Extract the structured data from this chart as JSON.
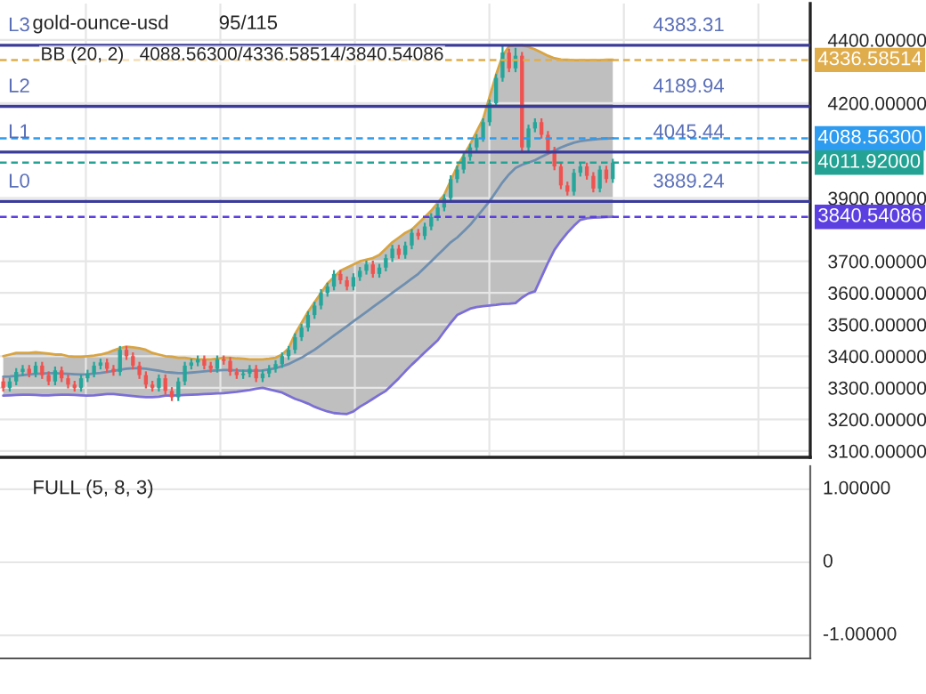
{
  "chart_data": [
    {
      "type": "candlestick",
      "title": "gold-ounce-usd",
      "subtitle": "95/115",
      "annotations": [
        "BB (20, 2)   4088.56300/4336.58514/3840.54086",
        {
          "text": "4383.31",
          "y": 4383.31
        },
        {
          "text": "4189.94",
          "y": 4189.94
        },
        {
          "text": "4045.44",
          "y": 4045.44
        },
        {
          "text": "3889.24",
          "y": 3889.24
        }
      ],
      "categories": [
        null,
        null,
        null,
        null,
        null,
        null,
        null,
        null,
        null,
        null,
        null,
        null,
        null,
        null,
        null,
        null,
        null,
        null,
        null,
        null,
        null,
        null,
        null,
        null,
        null,
        null,
        null,
        null,
        null,
        null,
        null,
        null,
        null,
        null,
        null,
        null,
        null,
        null,
        null,
        null,
        null,
        null,
        null,
        null,
        null,
        null,
        null,
        null,
        null,
        null,
        null,
        null,
        null,
        null,
        null,
        null,
        null,
        null,
        null,
        null,
        null,
        null,
        null,
        null,
        null,
        null,
        null,
        null,
        null,
        null,
        null,
        null,
        null,
        null,
        null,
        null,
        null,
        null,
        null,
        null,
        null,
        null,
        null,
        null,
        null,
        null,
        null,
        null,
        null,
        null,
        null,
        null,
        null,
        null,
        null
      ],
      "ohlc": [
        [
          3320,
          3332,
          3288,
          3300
        ],
        [
          3300,
          3332,
          3288,
          3320
        ],
        [
          3320,
          3362,
          3308,
          3350
        ],
        [
          3350,
          3372,
          3338,
          3360
        ],
        [
          3360,
          3372,
          3333,
          3345
        ],
        [
          3345,
          3382,
          3333,
          3370
        ],
        [
          3370,
          3382,
          3328,
          3340
        ],
        [
          3340,
          3352,
          3308,
          3320
        ],
        [
          3320,
          3367,
          3308,
          3355
        ],
        [
          3355,
          3367,
          3318,
          3330
        ],
        [
          3330,
          3342,
          3298,
          3310
        ],
        [
          3310,
          3322,
          3288,
          3300
        ],
        [
          3300,
          3342,
          3288,
          3330
        ],
        [
          3330,
          3357,
          3318,
          3345
        ],
        [
          3345,
          3382,
          3333,
          3370
        ],
        [
          3370,
          3392,
          3358,
          3380
        ],
        [
          3380,
          3392,
          3348,
          3360
        ],
        [
          3360,
          3372,
          3338,
          3350
        ],
        [
          3350,
          3432,
          3338,
          3420
        ],
        [
          3420,
          3432,
          3388,
          3400
        ],
        [
          3400,
          3412,
          3358,
          3370
        ],
        [
          3370,
          3382,
          3328,
          3340
        ],
        [
          3340,
          3352,
          3298,
          3310
        ],
        [
          3310,
          3322,
          3288,
          3300
        ],
        [
          3300,
          3342,
          3288,
          3330
        ],
        [
          3330,
          3342,
          3278,
          3290
        ],
        [
          3290,
          3302,
          3258,
          3270
        ],
        [
          3270,
          3332,
          3258,
          3320
        ],
        [
          3320,
          3382,
          3308,
          3370
        ],
        [
          3370,
          3392,
          3358,
          3380
        ],
        [
          3380,
          3402,
          3368,
          3390
        ],
        [
          3390,
          3402,
          3358,
          3370
        ],
        [
          3370,
          3382,
          3348,
          3360
        ],
        [
          3360,
          3402,
          3348,
          3390
        ],
        [
          3390,
          3402,
          3373,
          3385
        ],
        [
          3385,
          3397,
          3338,
          3350
        ],
        [
          3350,
          3362,
          3328,
          3340
        ],
        [
          3340,
          3357,
          3328,
          3345
        ],
        [
          3345,
          3372,
          3333,
          3360
        ],
        [
          3360,
          3372,
          3318,
          3330
        ],
        [
          3330,
          3357,
          3318,
          3345
        ],
        [
          3345,
          3372,
          3333,
          3360
        ],
        [
          3360,
          3387,
          3348,
          3375
        ],
        [
          3375,
          3412,
          3363,
          3400
        ],
        [
          3400,
          3432,
          3388,
          3420
        ],
        [
          3420,
          3472,
          3408,
          3460
        ],
        [
          3460,
          3502,
          3448,
          3490
        ],
        [
          3490,
          3542,
          3478,
          3530
        ],
        [
          3530,
          3572,
          3518,
          3560
        ],
        [
          3560,
          3612,
          3548,
          3600
        ],
        [
          3600,
          3632,
          3588,
          3620
        ],
        [
          3620,
          3672,
          3608,
          3660
        ],
        [
          3660,
          3672,
          3628,
          3640
        ],
        [
          3640,
          3652,
          3608,
          3620
        ],
        [
          3620,
          3662,
          3608,
          3650
        ],
        [
          3650,
          3682,
          3638,
          3670
        ],
        [
          3670,
          3702,
          3658,
          3690
        ],
        [
          3690,
          3702,
          3648,
          3660
        ],
        [
          3660,
          3692,
          3648,
          3680
        ],
        [
          3680,
          3722,
          3668,
          3710
        ],
        [
          3710,
          3752,
          3698,
          3740
        ],
        [
          3740,
          3752,
          3708,
          3720
        ],
        [
          3720,
          3762,
          3708,
          3750
        ],
        [
          3750,
          3802,
          3738,
          3790
        ],
        [
          3790,
          3802,
          3768,
          3780
        ],
        [
          3780,
          3822,
          3768,
          3810
        ],
        [
          3810,
          3852,
          3798,
          3840
        ],
        [
          3840,
          3882,
          3828,
          3870
        ],
        [
          3870,
          3912,
          3858,
          3900
        ],
        [
          3900,
          3972,
          3888,
          3960
        ],
        [
          3960,
          4002,
          3948,
          3990
        ],
        [
          3990,
          4042,
          3978,
          4030
        ],
        [
          4030,
          4072,
          4018,
          4060
        ],
        [
          4060,
          4102,
          4048,
          4090
        ],
        [
          4090,
          4152,
          4078,
          4140
        ],
        [
          4140,
          4212,
          4128,
          4200
        ],
        [
          4200,
          4292,
          4188,
          4280
        ],
        [
          4280,
          4380,
          4268,
          4360
        ],
        [
          4360,
          4372,
          4298,
          4310
        ],
        [
          4310,
          4375,
          4298,
          4350
        ],
        [
          4350,
          4362,
          4048,
          4060
        ],
        [
          4060,
          4132,
          4048,
          4120
        ],
        [
          4120,
          4152,
          4108,
          4140
        ],
        [
          4140,
          4152,
          4088,
          4100
        ],
        [
          4100,
          4112,
          4038,
          4050
        ],
        [
          4050,
          4062,
          3988,
          4000
        ],
        [
          4000,
          4012,
          3928,
          3940
        ],
        [
          3940,
          3952,
          3908,
          3920
        ],
        [
          3920,
          3992,
          3908,
          3980
        ],
        [
          3980,
          4012,
          3968,
          4000
        ],
        [
          4000,
          4012,
          3958,
          3970
        ],
        [
          3970,
          3982,
          3918,
          3930
        ],
        [
          3930,
          4002,
          3918,
          3990
        ],
        [
          3990,
          4002,
          3948,
          3960
        ],
        [
          3960,
          4024,
          3948,
          4011.92
        ]
      ],
      "series": [
        {
          "type": "line",
          "color": "#d9a441",
          "values": [
            3400,
            3405,
            3410,
            3410,
            3410,
            3412,
            3410,
            3408,
            3405,
            3405,
            3400,
            3398,
            3398,
            3400,
            3402,
            3405,
            3410,
            3418,
            3425,
            3430,
            3428,
            3425,
            3420,
            3410,
            3405,
            3400,
            3398,
            3395,
            3395,
            3392,
            3390,
            3390,
            3390,
            3392,
            3395,
            3395,
            3393,
            3392,
            3390,
            3390,
            3390,
            3392,
            3395,
            3405,
            3425,
            3470,
            3505,
            3540,
            3570,
            3600,
            3630,
            3650,
            3670,
            3680,
            3690,
            3700,
            3705,
            3710,
            3720,
            3740,
            3760,
            3775,
            3790,
            3800,
            3820,
            3840,
            3860,
            3885,
            3910,
            3955,
            4000,
            4035,
            4070,
            4110,
            4150,
            4220,
            4290,
            4350,
            4380,
            4383,
            4383,
            4378,
            4370,
            4360,
            4350,
            4342,
            4338,
            4337,
            4336,
            4336,
            4336,
            4336,
            4336,
            4337,
            4337
          ]
        },
        {
          "type": "line",
          "color": "#6f8fb0",
          "upper": [
            3400,
            3405,
            3410,
            3410,
            3410,
            3412,
            3410,
            3408,
            3405,
            3405,
            3400,
            3398,
            3398,
            3400,
            3402,
            3405,
            3410,
            3418,
            3425,
            3430,
            3428,
            3425,
            3420,
            3410,
            3405,
            3400,
            3398,
            3395,
            3395,
            3392,
            3390,
            3390,
            3390,
            3392,
            3395,
            3395,
            3393,
            3392,
            3390,
            3390,
            3390,
            3392,
            3395,
            3405,
            3425,
            3470,
            3505,
            3540,
            3570,
            3600,
            3630,
            3650,
            3670,
            3680,
            3690,
            3700,
            3705,
            3710,
            3720,
            3740,
            3760,
            3775,
            3790,
            3800,
            3820,
            3840,
            3860,
            3885,
            3910,
            3955,
            4000,
            4035,
            4070,
            4110,
            4150,
            4220,
            4290,
            4350,
            4380,
            4383,
            4383,
            4378,
            4370,
            4360,
            4350,
            4342,
            4338,
            4337,
            4336,
            4336,
            4336,
            4336,
            4336,
            4337,
            4337
          ],
          "lower": [
            3275,
            3276,
            3277,
            3278,
            3278,
            3277,
            3276,
            3276,
            3277,
            3278,
            3278,
            3277,
            3276,
            3275,
            3276,
            3278,
            3280,
            3280,
            3278,
            3276,
            3274,
            3272,
            3270,
            3270,
            3272,
            3275,
            3275,
            3276,
            3277,
            3278,
            3279,
            3280,
            3281,
            3282,
            3283,
            3285,
            3287,
            3290,
            3293,
            3297,
            3300,
            3295,
            3290,
            3285,
            3275,
            3265,
            3258,
            3250,
            3240,
            3232,
            3225,
            3220,
            3218,
            3217,
            3225,
            3240,
            3252,
            3265,
            3278,
            3290,
            3310,
            3330,
            3352,
            3373,
            3392,
            3412,
            3431,
            3450,
            3478,
            3505,
            3530,
            3540,
            3550,
            3555,
            3558,
            3560,
            3562,
            3565,
            3566,
            3568,
            3585,
            3598,
            3605,
            3650,
            3695,
            3736,
            3765,
            3790,
            3812,
            3831,
            3836,
            3838,
            3839,
            3840,
            3841
          ],
          "values": [
            3335,
            3336,
            3338,
            3340,
            3342,
            3344,
            3345,
            3346,
            3346,
            3345,
            3344,
            3343,
            3342,
            3343,
            3345,
            3347,
            3350,
            3353,
            3357,
            3360,
            3362,
            3362,
            3360,
            3357,
            3354,
            3350,
            3348,
            3346,
            3346,
            3348,
            3350,
            3352,
            3354,
            3355,
            3356,
            3356,
            3355,
            3354,
            3354,
            3354,
            3355,
            3358,
            3362,
            3368,
            3375,
            3385,
            3395,
            3408,
            3420,
            3435,
            3450,
            3465,
            3480,
            3495,
            3510,
            3525,
            3540,
            3555,
            3570,
            3585,
            3600,
            3615,
            3630,
            3645,
            3660,
            3680,
            3700,
            3720,
            3740,
            3760,
            3775,
            3795,
            3815,
            3840,
            3865,
            3890,
            3920,
            3950,
            3975,
            3995,
            4005,
            4012,
            4020,
            4030,
            4040,
            4050,
            4060,
            4068,
            4075,
            4080,
            4083,
            4085,
            4087,
            4088,
            4089
          ]
        },
        {
          "type": "line",
          "color": "#7b6fd6",
          "values": [
            3275,
            3276,
            3277,
            3278,
            3278,
            3277,
            3276,
            3276,
            3277,
            3278,
            3278,
            3277,
            3276,
            3275,
            3276,
            3278,
            3280,
            3280,
            3278,
            3276,
            3274,
            3272,
            3270,
            3270,
            3272,
            3275,
            3275,
            3276,
            3277,
            3278,
            3279,
            3280,
            3281,
            3282,
            3283,
            3285,
            3287,
            3290,
            3293,
            3297,
            3300,
            3295,
            3290,
            3285,
            3275,
            3265,
            3258,
            3250,
            3240,
            3232,
            3225,
            3220,
            3218,
            3217,
            3225,
            3240,
            3252,
            3265,
            3278,
            3290,
            3310,
            3330,
            3352,
            3373,
            3392,
            3412,
            3431,
            3450,
            3478,
            3505,
            3530,
            3540,
            3550,
            3555,
            3558,
            3560,
            3562,
            3565,
            3566,
            3568,
            3585,
            3598,
            3605,
            3650,
            3695,
            3736,
            3765,
            3790,
            3812,
            3831,
            3836,
            3838,
            3839,
            3840,
            3841
          ]
        }
      ],
      "ylim": [
        3080,
        4515
      ],
      "yticks": [
        {
          "value": 3100,
          "label": "3100.00000"
        },
        {
          "value": 3200,
          "label": "3200.00000"
        },
        {
          "value": 3300,
          "label": "3300.00000"
        },
        {
          "value": 3400,
          "label": "3400.00000"
        },
        {
          "value": 3500,
          "label": "3500.00000"
        },
        {
          "value": 3600,
          "label": "3600.00000"
        },
        {
          "value": 3700,
          "label": "3700.00000"
        },
        {
          "value": 3900,
          "label": "3900.00000"
        },
        {
          "value": 4200,
          "label": "4200.00000"
        },
        {
          "value": 4400,
          "label": "4400.00000"
        }
      ],
      "ref_lines": [
        {
          "axis": "y",
          "value": 4383.31,
          "label": "L3",
          "color": "#3b3b9a",
          "line_style": "solid"
        },
        {
          "axis": "y",
          "value": 4189.94,
          "label": "L2",
          "color": "#3b3b9a",
          "line_style": "solid"
        },
        {
          "axis": "y",
          "value": 4045.44,
          "label": "L1",
          "color": "#3b3b9a",
          "line_style": "solid"
        },
        {
          "axis": "y",
          "value": 3889.24,
          "label": "L0",
          "color": "#3b3b9a",
          "line_style": "solid"
        },
        {
          "axis": "y",
          "value": 4336.58514,
          "label": "4336.58514",
          "color": "#e0ad4c",
          "line_style": "dashed"
        },
        {
          "axis": "y",
          "value": 4088.563,
          "label": "4088.56300",
          "color": "#2d9cf0",
          "line_style": "dashed"
        },
        {
          "axis": "y",
          "value": 4011.92,
          "label": "4011.92000",
          "color": "#24a394",
          "line_style": "dashed"
        },
        {
          "axis": "y",
          "value": 3840.54086,
          "label": "3840.54086",
          "color": "#5b3fe0",
          "line_style": "dashed"
        }
      ],
      "grid": true,
      "tick_labels": "y"
    },
    {
      "type": "other",
      "title": "FULL (5, 8, 3)",
      "annotations": [
        "1.00000",
        "0",
        "-1.00000"
      ]
    }
  ]
}
